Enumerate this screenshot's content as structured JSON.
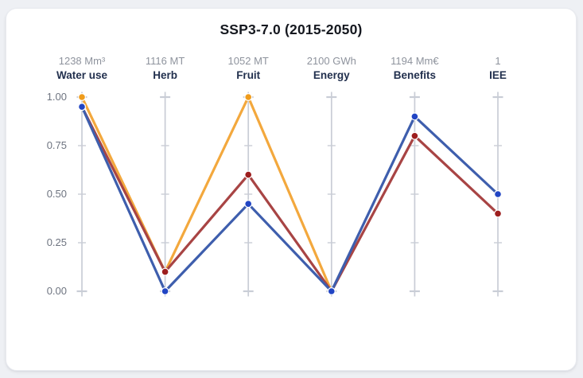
{
  "chart_data": {
    "type": "line",
    "subtype": "parallel-coordinates",
    "title": "SSP3-7.0 (2015-2050)",
    "ylim": [
      0,
      1
    ],
    "grid": false,
    "legend": "none",
    "yticks": [
      "1.00",
      "0.75",
      "0.50",
      "0.25",
      "0.00"
    ],
    "ytick_values": [
      1.0,
      0.75,
      0.5,
      0.25,
      0.0
    ],
    "axes": [
      {
        "name": "Water use",
        "max_label": "1238 Mm³"
      },
      {
        "name": "Herb",
        "max_label": "1116 MT"
      },
      {
        "name": "Fruit",
        "max_label": "1052 MT"
      },
      {
        "name": "Energy",
        "max_label": "2100 GWh"
      },
      {
        "name": "Benefits",
        "max_label": "1194 Mm€"
      },
      {
        "name": "IEE",
        "max_label": "1"
      }
    ],
    "series": [
      {
        "name": "orange-series",
        "line_color": "#F3A83D",
        "dot_color": "#EF9C1C",
        "values": [
          1.0,
          0.1,
          1.0,
          0.0,
          null,
          null
        ]
      },
      {
        "name": "red-series",
        "line_color": "#A84444",
        "dot_color": "#9D1E1E",
        "values": [
          0.95,
          0.1,
          0.6,
          0.0,
          0.8,
          0.4
        ]
      },
      {
        "name": "blue-series",
        "line_color": "#3E5EAD",
        "dot_color": "#2145C4",
        "values": [
          0.95,
          0.0,
          0.45,
          0.0,
          0.9,
          0.5
        ]
      }
    ],
    "colors": {
      "axis_line": "#C9CDD6",
      "dot_outline": "#FFFFFF"
    }
  }
}
